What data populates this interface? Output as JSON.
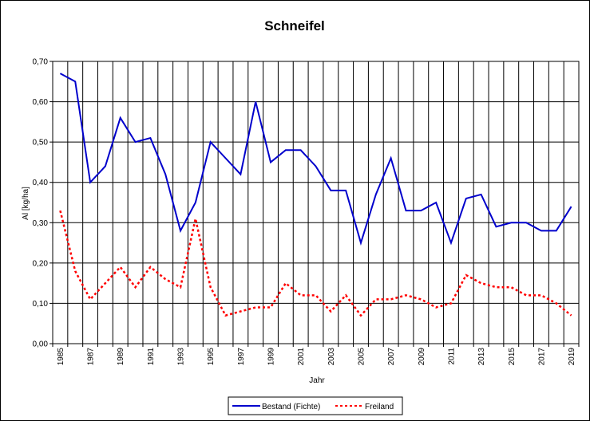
{
  "chart_data": {
    "type": "line",
    "title": "Schneifel",
    "xlabel": "Jahr",
    "ylabel": "Al [kg/ha]",
    "ylim": [
      0,
      0.7
    ],
    "yticks": [
      "0,00",
      "0,10",
      "0,20",
      "0,30",
      "0,40",
      "0,50",
      "0,60",
      "0,70"
    ],
    "xticks": [
      "1985",
      "1987",
      "1989",
      "1991",
      "1993",
      "1995",
      "1997",
      "1999",
      "2001",
      "2003",
      "2005",
      "2007",
      "2009",
      "2011",
      "2013",
      "2015",
      "2017",
      "2019"
    ],
    "x": [
      1985,
      1986,
      1987,
      1988,
      1989,
      1990,
      1991,
      1992,
      1993,
      1994,
      1995,
      1996,
      1997,
      1998,
      1999,
      2000,
      2001,
      2002,
      2003,
      2004,
      2005,
      2006,
      2007,
      2008,
      2009,
      2010,
      2011,
      2012,
      2013,
      2014,
      2015,
      2016,
      2017,
      2018,
      2019
    ],
    "grid": true,
    "legend_position": "bottom",
    "series": [
      {
        "name": "Bestand (Fichte)",
        "color": "#0000cc",
        "style": "solid",
        "values": [
          0.67,
          0.65,
          0.4,
          0.44,
          0.56,
          0.5,
          0.51,
          0.42,
          0.28,
          0.35,
          0.5,
          0.46,
          0.42,
          0.6,
          0.45,
          0.48,
          0.48,
          0.44,
          0.38,
          0.38,
          0.25,
          0.37,
          0.46,
          0.33,
          0.33,
          0.35,
          0.25,
          0.36,
          0.37,
          0.29,
          0.3,
          0.3,
          0.28,
          0.28,
          0.34
        ]
      },
      {
        "name": "Freiland",
        "color": "#ff0000",
        "style": "dashed",
        "values": [
          0.33,
          0.18,
          0.11,
          0.15,
          0.19,
          0.14,
          0.19,
          0.16,
          0.14,
          0.31,
          0.14,
          0.07,
          0.08,
          0.09,
          0.09,
          0.15,
          0.12,
          0.12,
          0.08,
          0.12,
          0.07,
          0.11,
          0.11,
          0.12,
          0.11,
          0.09,
          0.1,
          0.17,
          0.15,
          0.14,
          0.14,
          0.12,
          0.12,
          0.1,
          0.07
        ]
      }
    ]
  }
}
